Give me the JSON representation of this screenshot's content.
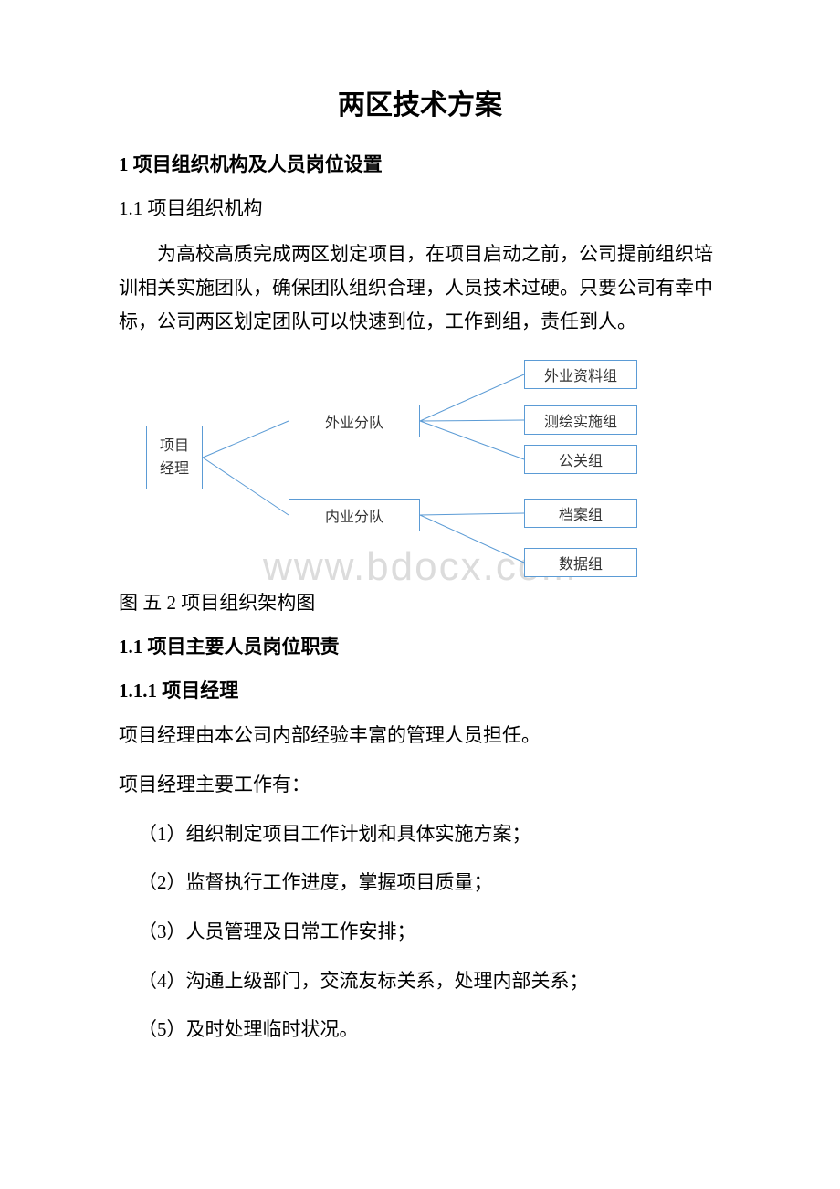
{
  "title": "两区技术方案",
  "section1_heading": "1 项目组织机构及人员岗位设置",
  "section1_1_heading": "1.1 项目组织机构",
  "intro_paragraph": "为高校高质完成两区划定项目，在项目启动之前，公司提前组织培训相关实施团队，确保团队组织合理，人员技术过硬。只要公司有幸中标，公司两区划定团队可以快速到位，工作到组，责任到人。",
  "diagram": {
    "type": "tree",
    "border_color": "#5b9bd5",
    "line_color": "#5b9bd5",
    "background_color": "#ffffff",
    "font_size": 16,
    "text_color": "#333333",
    "nodes": {
      "pm": "项目\n经理",
      "team_a": "外业分队",
      "team_b": "内业分队",
      "leaf1": "外业资料组",
      "leaf2": "测绘实施组",
      "leaf3": "公关组",
      "leaf4": "档案组",
      "leaf5": "数据组"
    },
    "edges": [
      [
        "pm",
        "team_a"
      ],
      [
        "pm",
        "team_b"
      ],
      [
        "team_a",
        "leaf1"
      ],
      [
        "team_a",
        "leaf2"
      ],
      [
        "team_a",
        "leaf3"
      ],
      [
        "team_b",
        "leaf4"
      ],
      [
        "team_b",
        "leaf5"
      ]
    ]
  },
  "figure_caption": "图 五 2 项目组织架构图",
  "section1_1b_heading": "1.1 项目主要人员岗位职责",
  "section1_1_1_heading": "1.1.1 项目经理",
  "pm_line1": "项目经理由本公司内部经验丰富的管理人员担任。",
  "pm_line2": "项目经理主要工作有：",
  "duties": [
    "（1）组织制定项目工作计划和具体实施方案；",
    "（2）监督执行工作进度，掌握项目质量；",
    "（3）人员管理及日常工作安排；",
    "（4）沟通上级部门，交流友标关系，处理内部关系；",
    "（5）及时处理临时状况。"
  ],
  "watermark": "www.bdocx.com"
}
